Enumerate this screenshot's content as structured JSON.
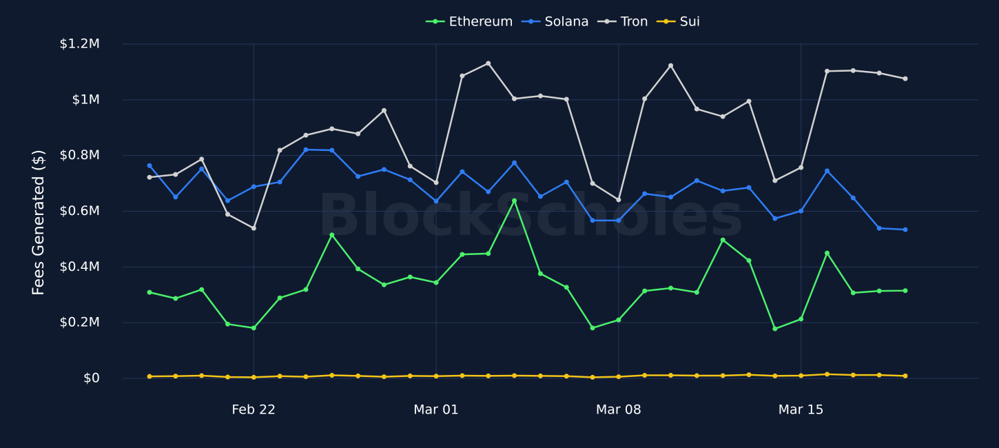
{
  "chart_data": {
    "type": "line",
    "watermark": "BlockScholes",
    "y_label": "Fees Generated ($)",
    "x": [
      "Feb 18",
      "Feb 19",
      "Feb 20",
      "Feb 21",
      "Feb 22",
      "Feb 23",
      "Feb 24",
      "Feb 25",
      "Feb 26",
      "Feb 27",
      "Feb 28",
      "Mar 01",
      "Mar 02",
      "Mar 03",
      "Mar 04",
      "Mar 05",
      "Mar 06",
      "Mar 07",
      "Mar 08",
      "Mar 09",
      "Mar 10",
      "Mar 11",
      "Mar 12",
      "Mar 13",
      "Mar 14",
      "Mar 15",
      "Mar 16",
      "Mar 17",
      "Mar 18",
      "Mar 19"
    ],
    "xticks": [
      "Feb 22",
      "Mar 01",
      "Mar 08",
      "Mar 15"
    ],
    "ylim": [
      0,
      1200000
    ],
    "yticks": [
      {
        "value": 0,
        "label": "$0"
      },
      {
        "value": 200000,
        "label": "$0.2M"
      },
      {
        "value": 400000,
        "label": "$0.4M"
      },
      {
        "value": 600000,
        "label": "$0.6M"
      },
      {
        "value": 800000,
        "label": "$0.8M"
      },
      {
        "value": 1000000,
        "label": "$1M"
      },
      {
        "value": 1200000,
        "label": "$1.2M"
      }
    ],
    "grid": true,
    "legend": "top",
    "series": [
      {
        "name": "Ethereum",
        "color": "#4cf06c",
        "values": [
          309000,
          287000,
          319000,
          195000,
          181000,
          289000,
          319000,
          515000,
          393000,
          336000,
          364000,
          344000,
          445000,
          448000,
          638000,
          376000,
          327000,
          181000,
          210000,
          314000,
          324000,
          309000,
          497000,
          423000,
          178000,
          213000,
          450000,
          307000,
          314000,
          315000
        ]
      },
      {
        "name": "Solana",
        "color": "#2f7df6",
        "values": [
          764000,
          651000,
          752000,
          638000,
          688000,
          705000,
          821000,
          819000,
          725000,
          750000,
          713000,
          636000,
          742000,
          670000,
          774000,
          653000,
          705000,
          567000,
          567000,
          663000,
          651000,
          710000,
          673000,
          685000,
          574000,
          601000,
          745000,
          648000,
          539000,
          534000
        ]
      },
      {
        "name": "Tron",
        "color": "#d2d2d2",
        "values": [
          722000,
          732000,
          787000,
          589000,
          539000,
          819000,
          873000,
          896000,
          878000,
          962000,
          762000,
          703000,
          1086000,
          1131000,
          1004000,
          1014000,
          1002000,
          700000,
          641000,
          1004000,
          1123000,
          967000,
          940000,
          995000,
          710000,
          757000,
          1103000,
          1105000,
          1096000,
          1076000
        ]
      },
      {
        "name": "Sui",
        "color": "#f5c518",
        "values": [
          7000,
          8000,
          10000,
          5000,
          4000,
          8000,
          6000,
          11000,
          9000,
          6000,
          9000,
          8000,
          10000,
          9000,
          10000,
          9000,
          8000,
          4000,
          6000,
          11000,
          11000,
          10000,
          10000,
          13000,
          9000,
          10000,
          15000,
          12000,
          12000,
          9000
        ]
      }
    ]
  }
}
